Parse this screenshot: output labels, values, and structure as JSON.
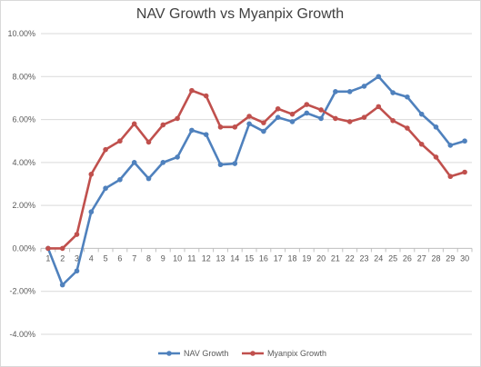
{
  "chart_data": {
    "type": "line",
    "title": "NAV Growth vs Myanpix Growth",
    "xlabel": "",
    "ylabel": "",
    "categories": [
      "1",
      "2",
      "3",
      "4",
      "5",
      "6",
      "7",
      "8",
      "9",
      "10",
      "11",
      "12",
      "13",
      "14",
      "15",
      "16",
      "17",
      "18",
      "19",
      "20",
      "21",
      "22",
      "23",
      "24",
      "25",
      "26",
      "27",
      "28",
      "29",
      "30"
    ],
    "y_ticks": [
      "-4.00%",
      "-2.00%",
      "0.00%",
      "2.00%",
      "4.00%",
      "6.00%",
      "8.00%",
      "10.00%"
    ],
    "ylim": [
      -4,
      10
    ],
    "grid": true,
    "legend_position": "bottom",
    "series": [
      {
        "name": "NAV Growth",
        "color": "#4f81bd",
        "values": [
          0.0,
          -1.7,
          -1.05,
          1.7,
          2.8,
          3.2,
          4.0,
          3.25,
          4.0,
          4.25,
          5.5,
          5.3,
          3.9,
          3.95,
          5.8,
          5.45,
          6.1,
          5.9,
          6.3,
          6.05,
          7.3,
          7.3,
          7.55,
          8.0,
          7.25,
          7.05,
          6.25,
          5.65,
          4.8,
          5.0
        ]
      },
      {
        "name": "Myanpix Growth",
        "color": "#c0504d",
        "values": [
          0.0,
          0.0,
          0.65,
          3.45,
          4.6,
          5.0,
          5.8,
          4.95,
          5.75,
          6.05,
          7.35,
          7.1,
          5.65,
          5.65,
          6.15,
          5.85,
          6.5,
          6.25,
          6.7,
          6.45,
          6.05,
          5.9,
          6.1,
          6.6,
          5.95,
          5.6,
          4.85,
          4.25,
          3.35,
          3.55
        ]
      }
    ]
  }
}
